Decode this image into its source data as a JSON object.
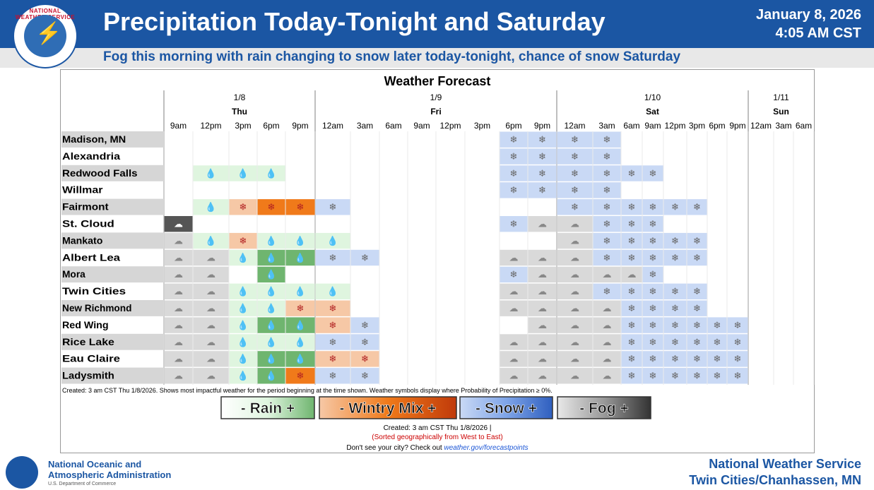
{
  "header": {
    "logo_text": "NATIONAL WEATHER SERVICE",
    "title": "Precipitation Today-Tonight and Saturday",
    "date_line1": "January 8, 2026",
    "date_line2": "4:05 AM CST",
    "subtitle": "Fog this morning with rain changing to snow later today-tonight, chance of snow Saturday"
  },
  "footer": {
    "agency_line1": "National Oceanic and",
    "agency_line2": "Atmospheric Administration",
    "dept": "U.S. Department of Commerce",
    "office_line1": "National Weather Service",
    "office_line2": "Twin Cities/Chanhassen, MN"
  },
  "colors": {
    "brand_blue": "#1b56a3",
    "rain": "#dff5df",
    "rain_more": "#6fb56f",
    "mix": "#f6c8a6",
    "mix_more": "#f07a1a",
    "snow": "#c9d9f5",
    "fog": "#d9d9d9",
    "fog_more": "#555555"
  },
  "chart_data": {
    "type": "table",
    "title": "Weather Forecast",
    "days": [
      {
        "date": "1/8",
        "name": "Thu"
      },
      {
        "date": "1/9",
        "name": "Fri"
      },
      {
        "date": "1/10",
        "name": "Sat"
      },
      {
        "date": "1/11",
        "name": "Sun"
      }
    ],
    "times": [
      "9am",
      "12pm",
      "3pm",
      "6pm",
      "9pm",
      "12am",
      "3am",
      "6am",
      "9am",
      "12pm",
      "3pm",
      "6pm",
      "9pm",
      "12am",
      "3am",
      "6am",
      "9am",
      "12pm",
      "3pm",
      "6pm",
      "9pm",
      "12am",
      "3am",
      "6am"
    ],
    "day_of_time": [
      0,
      0,
      0,
      0,
      0,
      1,
      1,
      1,
      1,
      1,
      1,
      1,
      1,
      2,
      2,
      2,
      2,
      2,
      2,
      2,
      2,
      3,
      3,
      3
    ],
    "legend": {
      "R": "rain",
      "RR": "rain (heavier)",
      "M": "wintry mix",
      "MM": "wintry mix (heavier)",
      "S": "snow",
      "SS": "snow (heavier)",
      "F": "fog",
      "FF": "fog (dense)"
    },
    "cities": [
      {
        "name": "Madison, MN",
        "cells": [
          "",
          "",
          "",
          "",
          "",
          "",
          "",
          "",
          "",
          "",
          "",
          "S",
          "S",
          "S",
          "S",
          "",
          "",
          "",
          "",
          "",
          "",
          "",
          "",
          ""
        ]
      },
      {
        "name": "Alexandria",
        "cells": [
          "",
          "",
          "",
          "",
          "",
          "",
          "",
          "",
          "",
          "",
          "",
          "S",
          "S",
          "S",
          "S",
          "",
          "",
          "",
          "",
          "",
          "",
          "",
          "",
          ""
        ]
      },
      {
        "name": "Redwood Falls",
        "cells": [
          "",
          "R",
          "R",
          "R",
          "",
          "",
          "",
          "",
          "",
          "",
          "",
          "S",
          "S",
          "S",
          "S",
          "S",
          "S",
          "",
          "",
          "",
          "",
          "",
          "",
          ""
        ]
      },
      {
        "name": "Willmar",
        "cells": [
          "",
          "",
          "",
          "",
          "",
          "",
          "",
          "",
          "",
          "",
          "",
          "S",
          "S",
          "S",
          "S",
          "",
          "",
          "",
          "",
          "",
          "",
          "",
          "",
          ""
        ]
      },
      {
        "name": "Fairmont",
        "cells": [
          "",
          "R",
          "M",
          "MM",
          "MM",
          "S",
          "",
          "",
          "",
          "",
          "",
          "",
          "",
          "S",
          "S",
          "S",
          "S",
          "S",
          "S",
          "",
          "",
          "",
          "",
          ""
        ]
      },
      {
        "name": "St. Cloud",
        "cells": [
          "FF",
          "",
          "",
          "",
          "",
          "",
          "",
          "",
          "",
          "",
          "",
          "S",
          "F",
          "F",
          "S",
          "S",
          "S",
          "",
          "",
          "",
          "",
          "",
          "",
          ""
        ]
      },
      {
        "name": "Mankato",
        "cells": [
          "F",
          "R",
          "M",
          "R",
          "R",
          "R",
          "",
          "",
          "",
          "",
          "",
          "",
          "",
          "F",
          "S",
          "S",
          "S",
          "S",
          "S",
          "",
          "",
          "",
          "",
          ""
        ]
      },
      {
        "name": "Albert Lea",
        "cells": [
          "F",
          "F",
          "R",
          "RR",
          "RR",
          "S",
          "S",
          "",
          "",
          "",
          "",
          "F",
          "F",
          "F",
          "S",
          "S",
          "S",
          "S",
          "S",
          "",
          "",
          "",
          "",
          ""
        ]
      },
      {
        "name": "Mora",
        "cells": [
          "F",
          "F",
          "",
          "RR",
          "",
          "",
          "",
          "",
          "",
          "",
          "",
          "S",
          "F",
          "F",
          "F",
          "F",
          "S",
          "",
          "",
          "",
          "",
          "",
          "",
          ""
        ]
      },
      {
        "name": "Twin Cities",
        "cells": [
          "F",
          "F",
          "R",
          "R",
          "R",
          "R",
          "",
          "",
          "",
          "",
          "",
          "F",
          "F",
          "F",
          "S",
          "S",
          "S",
          "S",
          "S",
          "",
          "",
          "",
          "",
          ""
        ]
      },
      {
        "name": "New Richmond",
        "cells": [
          "F",
          "F",
          "R",
          "R",
          "M",
          "M",
          "",
          "",
          "",
          "",
          "",
          "F",
          "F",
          "F",
          "F",
          "S",
          "S",
          "S",
          "S",
          "",
          "",
          "",
          "",
          ""
        ]
      },
      {
        "name": "Red Wing",
        "cells": [
          "F",
          "F",
          "R",
          "RR",
          "RR",
          "M",
          "S",
          "",
          "",
          "",
          "",
          "",
          "F",
          "F",
          "F",
          "S",
          "S",
          "S",
          "S",
          "S",
          "S",
          "",
          "",
          ""
        ]
      },
      {
        "name": "Rice Lake",
        "cells": [
          "F",
          "F",
          "R",
          "R",
          "R",
          "S",
          "S",
          "",
          "",
          "",
          "",
          "F",
          "F",
          "F",
          "F",
          "S",
          "S",
          "S",
          "S",
          "S",
          "S",
          "",
          "",
          ""
        ]
      },
      {
        "name": "Eau Claire",
        "cells": [
          "F",
          "F",
          "R",
          "RR",
          "RR",
          "M",
          "M",
          "",
          "",
          "",
          "",
          "F",
          "F",
          "F",
          "F",
          "S",
          "S",
          "S",
          "S",
          "S",
          "S",
          "",
          "",
          ""
        ]
      },
      {
        "name": "Ladysmith",
        "cells": [
          "F",
          "F",
          "R",
          "RR",
          "MM",
          "S",
          "S",
          "",
          "",
          "",
          "",
          "F",
          "F",
          "F",
          "F",
          "S",
          "S",
          "S",
          "S",
          "S",
          "S",
          "",
          "",
          ""
        ]
      }
    ],
    "legend_labels": [
      {
        "text": "- Rain +",
        "kind": "rain"
      },
      {
        "text": "- Wintry Mix +",
        "kind": "mix"
      },
      {
        "text": "- Snow +",
        "kind": "snow"
      },
      {
        "text": "- Fog +",
        "kind": "fog"
      }
    ],
    "note": "Created: 3 am CST Thu 1/8/2026. Shows most impactful weather for the period beginning at the time shown. Weather symbols display where Probability of Precipitation ≥ 0%.",
    "created": "Created: 3 am CST Thu 1/8/2026  |",
    "sorted": "(Sorted geographically from West to East)",
    "city_prefix": "Don't see your city? Check out ",
    "city_link": "weather.gov/forecastpoints"
  }
}
